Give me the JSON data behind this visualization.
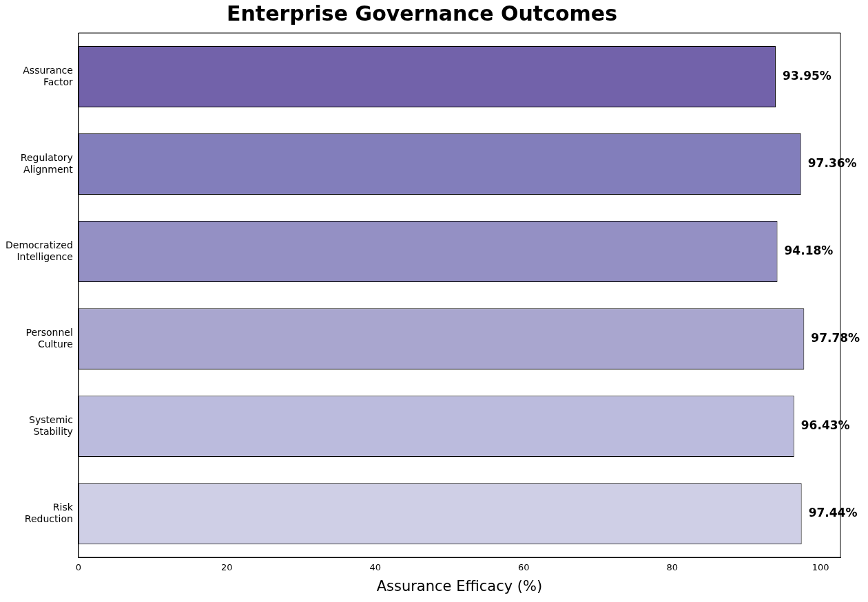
{
  "chart_data": {
    "type": "bar",
    "orientation": "horizontal",
    "title": "Enterprise Governance Outcomes",
    "xlabel": "Assurance Efficacy (%)",
    "categories": [
      "Assurance Factor",
      "Regulatory Alignment",
      "Democratized Intelligence",
      "Personnel Culture",
      "Systemic Stability",
      "Risk Reduction"
    ],
    "values": [
      93.95,
      97.36,
      94.18,
      97.78,
      96.43,
      97.44
    ],
    "colors": [
      "#7262aa",
      "#827ebb",
      "#9490c4",
      "#a9a6cf",
      "#bbbbdd",
      "#cfcfe6"
    ],
    "value_labels": [
      "93.95%",
      "97.36%",
      "94.18%",
      "97.78%",
      "96.43%",
      "97.44%"
    ],
    "xlim": [
      0,
      102.67
    ],
    "xticks": [
      0,
      20,
      40,
      60,
      80,
      100
    ],
    "grid": false,
    "legend": false
  }
}
